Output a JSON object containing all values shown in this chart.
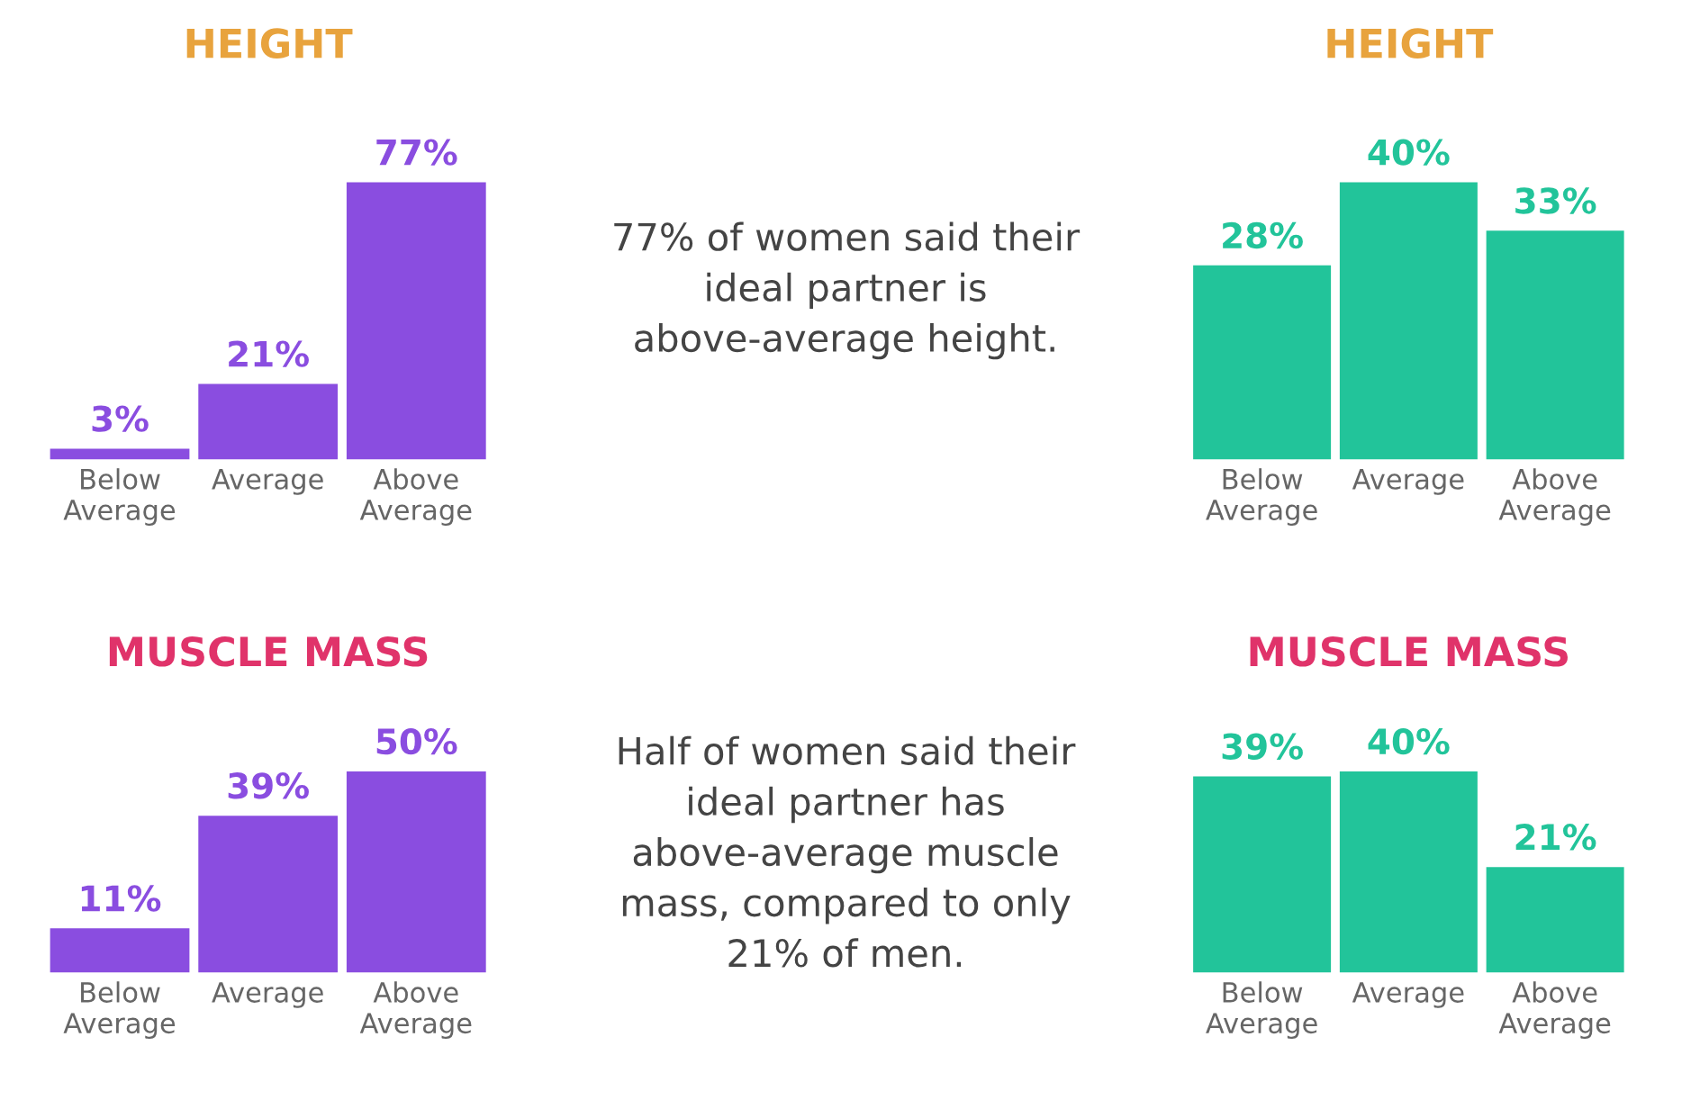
{
  "chart_data": [
    {
      "type": "bar",
      "title": "HEIGHT",
      "categories": [
        "Below\nAverage",
        "Average",
        "Above\nAverage"
      ],
      "values": [
        3,
        21,
        77
      ],
      "color": "#8a4de0",
      "value_labels": [
        "3%",
        "21%",
        "77%"
      ]
    },
    {
      "type": "other",
      "annotations": [
        "77% of women said their\nideal partner is\nabove-average height."
      ]
    },
    {
      "type": "bar",
      "title": "HEIGHT",
      "categories": [
        "Below\nAverage",
        "Average",
        "Above\nAverage"
      ],
      "values": [
        28,
        40,
        33
      ],
      "color": "#22c49a",
      "value_labels": [
        "28%",
        "40%",
        "33%"
      ]
    },
    {
      "type": "bar",
      "title": "MUSCLE MASS",
      "categories": [
        "Below\nAverage",
        "Average",
        "Above\nAverage"
      ],
      "values": [
        11,
        39,
        50
      ],
      "color": "#8a4de0",
      "value_labels": [
        "11%",
        "39%",
        "50%"
      ]
    },
    {
      "type": "other",
      "annotations": [
        "Half of women said their\nideal partner has\nabove-average muscle\nmass, compared to only\n21% of men."
      ]
    },
    {
      "type": "bar",
      "title": "MUSCLE MASS",
      "categories": [
        "Below\nAverage",
        "Average",
        "Above\nAverage"
      ],
      "values": [
        39,
        40,
        21
      ],
      "color": "#22c49a",
      "value_labels": [
        "39%",
        "40%",
        "21%"
      ]
    }
  ]
}
